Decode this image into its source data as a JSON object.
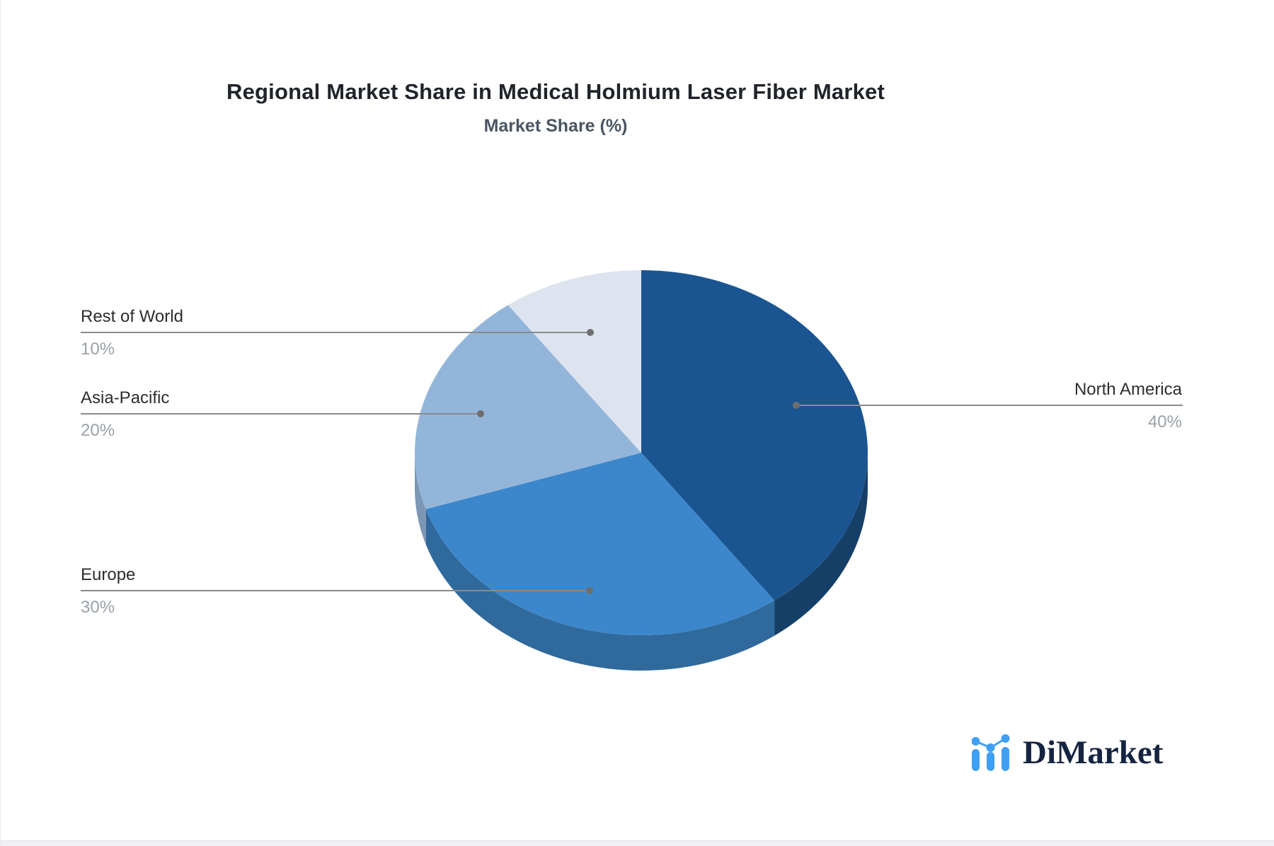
{
  "title": "Regional Market Share in Medical Holmium Laser Fiber Market",
  "subtitle": "Market Share (%)",
  "chart_data": {
    "type": "pie",
    "style": "3d-depth",
    "unit": "%",
    "start_angle_deg": 0,
    "direction": "clockwise",
    "label_style": "callout-lines",
    "title": "Regional Market Share in Medical Holmium Laser Fiber Market",
    "subtitle": "Market Share (%)",
    "slices": [
      {
        "label": "North America",
        "value": 40,
        "color": "#1a5591",
        "side_color": "#153f66"
      },
      {
        "label": "Europe",
        "value": 30,
        "color": "#3c87cb",
        "side_color": "#30699c"
      },
      {
        "label": "Asia-Pacific",
        "value": 20,
        "color": "#93b5da",
        "side_color": "#7b97b4"
      },
      {
        "label": "Rest of World",
        "value": 10,
        "color": "#dde4ef",
        "side_color": "#c3cfdf"
      }
    ]
  },
  "callouts": [
    {
      "label": "North America",
      "value_text": "40%"
    },
    {
      "label": "Europe",
      "value_text": "30%"
    },
    {
      "label": "Asia-Pacific",
      "value_text": "20%"
    },
    {
      "label": "Rest of World",
      "value_text": "10%"
    }
  ],
  "brand": {
    "logo_text": "DiMarket",
    "icon": "bar-chart-logo-icon",
    "icon_color": "#3f9ff3",
    "text_color": "#152440"
  }
}
